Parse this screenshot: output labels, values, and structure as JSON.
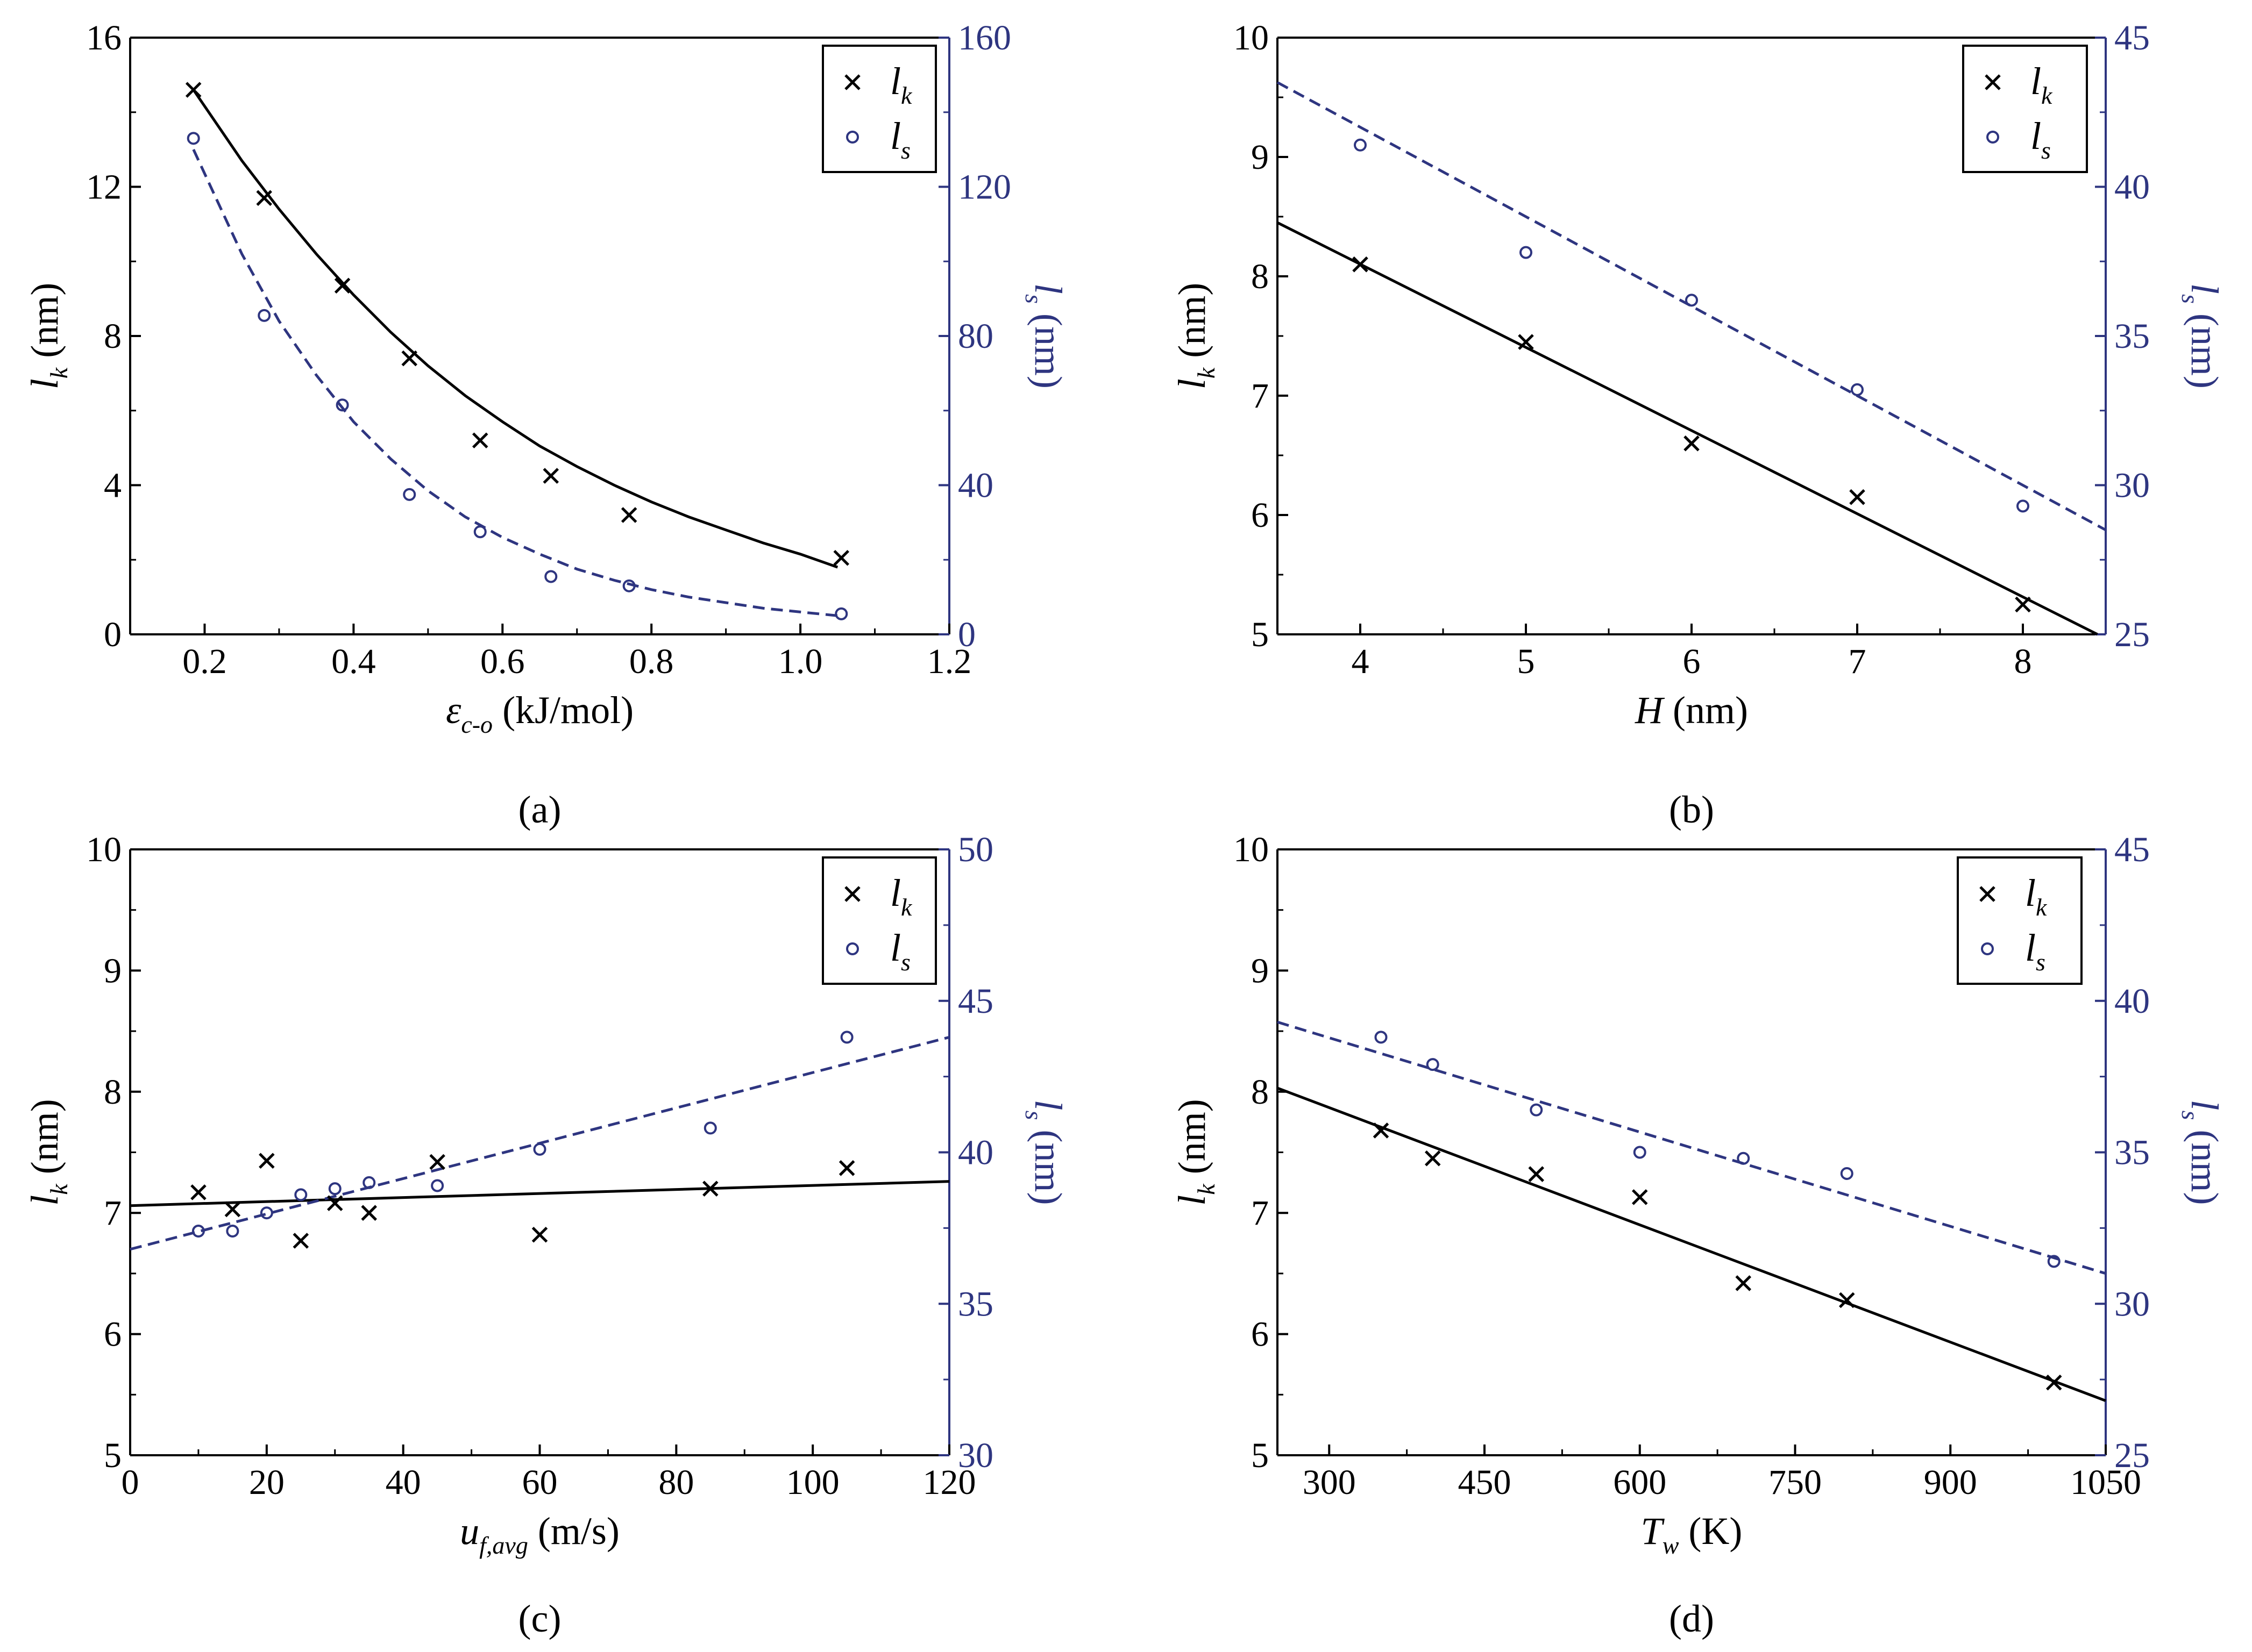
{
  "colors": {
    "primary": "#000000",
    "secondary": "#2e3580"
  },
  "legend": {
    "primary_symbol": "l",
    "primary_sub": "k",
    "secondary_symbol": "l",
    "secondary_sub": "s"
  },
  "chart_data": [
    {
      "panel": "(a)",
      "type": "scatter",
      "xlabel": {
        "sym": "ε",
        "sub": "c-o",
        "unit": "(kJ/mol)"
      },
      "ylabel_left": {
        "sym": "l",
        "sub": "k",
        "unit": "(nm)"
      },
      "ylabel_right": {
        "sym": "l",
        "sub": "s",
        "unit": "(nm)"
      },
      "xlim": [
        0.1,
        1.2
      ],
      "xticks": [
        0.2,
        0.4,
        0.6,
        0.8,
        1.0,
        1.2
      ],
      "xtick_labels": [
        "0.2",
        "0.4",
        "0.6",
        "0.8",
        "1.0",
        "1.2"
      ],
      "ylim_left": [
        0,
        16
      ],
      "yticks_left": [
        0,
        4,
        8,
        12,
        16
      ],
      "ylim_right": [
        0,
        160
      ],
      "yticks_right": [
        0,
        40,
        80,
        120,
        160
      ],
      "series": [
        {
          "name": "l_k",
          "axis": "left",
          "marker": "x",
          "x": [
            0.185,
            0.28,
            0.385,
            0.475,
            0.57,
            0.665,
            0.77,
            1.055
          ],
          "y": [
            14.6,
            11.7,
            9.35,
            7.4,
            5.2,
            4.25,
            3.2,
            2.05
          ]
        },
        {
          "name": "l_s",
          "axis": "right",
          "marker": "o",
          "x": [
            0.185,
            0.28,
            0.385,
            0.475,
            0.57,
            0.665,
            0.77,
            1.055
          ],
          "y": [
            133,
            85.5,
            61.5,
            37.5,
            27.5,
            15.5,
            13,
            5.5
          ]
        }
      ],
      "fits": [
        {
          "series": "l_k",
          "axis": "left",
          "style": "solid",
          "x": [
            0.185,
            0.25,
            0.3,
            0.35,
            0.4,
            0.45,
            0.5,
            0.55,
            0.6,
            0.65,
            0.7,
            0.75,
            0.8,
            0.85,
            0.9,
            0.95,
            1.0,
            1.05
          ],
          "y": [
            14.6,
            12.7,
            11.4,
            10.2,
            9.1,
            8.1,
            7.2,
            6.4,
            5.7,
            5.05,
            4.5,
            4.0,
            3.55,
            3.15,
            2.8,
            2.45,
            2.15,
            1.8
          ]
        },
        {
          "series": "l_s",
          "axis": "right",
          "style": "dashed",
          "x": [
            0.185,
            0.25,
            0.3,
            0.35,
            0.4,
            0.45,
            0.5,
            0.55,
            0.6,
            0.65,
            0.7,
            0.75,
            0.8,
            0.85,
            0.9,
            0.95,
            1.0,
            1.05
          ],
          "y": [
            130,
            102,
            84,
            69.5,
            57,
            47,
            38.5,
            31.5,
            26,
            21.5,
            17.5,
            14.5,
            12,
            10,
            8.5,
            7,
            6,
            5
          ]
        }
      ]
    },
    {
      "panel": "(b)",
      "type": "scatter",
      "xlabel": {
        "sym": "H",
        "sub": "",
        "unit": "(nm)"
      },
      "ylabel_left": {
        "sym": "l",
        "sub": "k",
        "unit": "(nm)"
      },
      "ylabel_right": {
        "sym": "l",
        "sub": "s",
        "unit": "(nm)"
      },
      "xlim": [
        3.5,
        8.5
      ],
      "xticks": [
        4,
        5,
        6,
        7,
        8
      ],
      "xtick_labels": [
        "4",
        "5",
        "6",
        "7",
        "8"
      ],
      "ylim_left": [
        5,
        10
      ],
      "yticks_left": [
        5,
        6,
        7,
        8,
        9,
        10
      ],
      "ylim_right": [
        25,
        45
      ],
      "yticks_right": [
        25,
        30,
        35,
        40,
        45
      ],
      "series": [
        {
          "name": "l_k",
          "axis": "left",
          "marker": "x",
          "x": [
            4,
            5,
            6,
            7,
            8
          ],
          "y": [
            8.1,
            7.45,
            6.6,
            6.15,
            5.25
          ]
        },
        {
          "name": "l_s",
          "axis": "right",
          "marker": "o",
          "x": [
            4,
            5,
            6,
            7,
            8
          ],
          "y": [
            41.4,
            37.8,
            36.2,
            33.2,
            29.3
          ]
        }
      ],
      "fits": [
        {
          "series": "l_k",
          "axis": "left",
          "style": "solid",
          "x": [
            3.5,
            8.45
          ],
          "y": [
            8.45,
            5.0
          ]
        },
        {
          "series": "l_s",
          "axis": "right",
          "style": "dashed",
          "x": [
            3.5,
            8.5
          ],
          "y": [
            43.5,
            28.5
          ]
        }
      ]
    },
    {
      "panel": "(c)",
      "type": "scatter",
      "xlabel": {
        "sym": "u",
        "sub": "f,avg",
        "unit": "(m/s)"
      },
      "ylabel_left": {
        "sym": "l",
        "sub": "k",
        "unit": "(nm)"
      },
      "ylabel_right": {
        "sym": "l",
        "sub": "s",
        "unit": "(nm)"
      },
      "xlim": [
        0,
        120
      ],
      "xticks": [
        0,
        20,
        40,
        60,
        80,
        100,
        120
      ],
      "xtick_labels": [
        "0",
        "20",
        "40",
        "60",
        "80",
        "100",
        "120"
      ],
      "ylim_left": [
        5,
        10
      ],
      "yticks_left": [
        5,
        6,
        7,
        8,
        9,
        10
      ],
      "ylim_right": [
        30,
        50
      ],
      "yticks_right": [
        30,
        35,
        40,
        45,
        50
      ],
      "series": [
        {
          "name": "l_k",
          "axis": "left",
          "marker": "x",
          "x": [
            10,
            15,
            20,
            25,
            30,
            35,
            45,
            60,
            85,
            105
          ],
          "y": [
            7.17,
            7.03,
            7.43,
            6.77,
            7.08,
            7.0,
            7.42,
            6.82,
            7.2,
            7.37
          ]
        },
        {
          "name": "l_s",
          "axis": "right",
          "marker": "o",
          "x": [
            10,
            15,
            20,
            25,
            30,
            35,
            45,
            60,
            85,
            105
          ],
          "y": [
            37.4,
            37.4,
            38.0,
            38.6,
            38.8,
            39.0,
            38.9,
            40.1,
            40.8,
            43.8
          ]
        }
      ],
      "fits": [
        {
          "series": "l_k",
          "axis": "left",
          "style": "solid",
          "x": [
            0,
            120
          ],
          "y": [
            7.06,
            7.26
          ]
        },
        {
          "series": "l_s",
          "axis": "right",
          "style": "dashed",
          "x": [
            0,
            120
          ],
          "y": [
            36.8,
            43.8
          ]
        }
      ]
    },
    {
      "panel": "(d)",
      "type": "scatter",
      "xlabel": {
        "sym": "T",
        "sub": "w",
        "unit": "(K)"
      },
      "ylabel_left": {
        "sym": "l",
        "sub": "k",
        "unit": "(nm)"
      },
      "ylabel_right": {
        "sym": "l",
        "sub": "s",
        "unit": "(nm)"
      },
      "xlim": [
        250,
        1050
      ],
      "xticks": [
        300,
        450,
        600,
        750,
        900,
        1050
      ],
      "xtick_labels": [
        "300",
        "450",
        "600",
        "750",
        "900",
        "1050"
      ],
      "ylim_left": [
        5,
        10
      ],
      "yticks_left": [
        5,
        6,
        7,
        8,
        9,
        10
      ],
      "ylim_right": [
        25,
        45
      ],
      "yticks_right": [
        25,
        30,
        35,
        40,
        45
      ],
      "series": [
        {
          "name": "l_k",
          "axis": "left",
          "marker": "x",
          "x": [
            350,
            400,
            500,
            600,
            700,
            800,
            1000
          ],
          "y": [
            7.68,
            7.45,
            7.32,
            7.13,
            6.42,
            6.28,
            5.6
          ]
        },
        {
          "name": "l_s",
          "axis": "right",
          "marker": "o",
          "x": [
            350,
            400,
            500,
            600,
            700,
            800,
            1000
          ],
          "y": [
            38.8,
            37.9,
            36.4,
            35.0,
            34.8,
            34.3,
            31.4
          ]
        }
      ],
      "fits": [
        {
          "series": "l_k",
          "axis": "left",
          "style": "solid",
          "x": [
            250,
            1050
          ],
          "y": [
            8.03,
            5.45
          ]
        },
        {
          "series": "l_s",
          "axis": "right",
          "style": "dashed",
          "x": [
            250,
            1050
          ],
          "y": [
            39.3,
            31.0
          ]
        }
      ]
    }
  ]
}
